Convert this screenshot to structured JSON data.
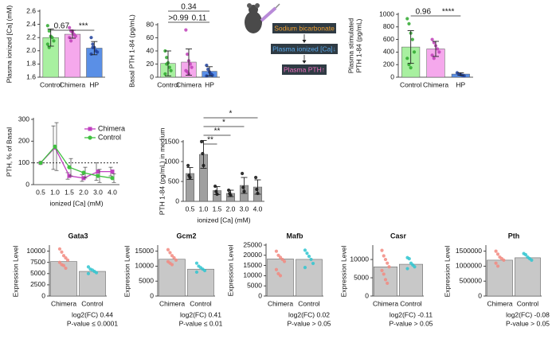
{
  "chart_data": [
    {
      "type": "bar",
      "y_label": [
        "Plasma ionized [Ca] (mM)"
      ],
      "categories": [
        "Control",
        "Chimera",
        "HP"
      ],
      "values": [
        2.2,
        2.25,
        2.04
      ],
      "errors": [
        0.13,
        0.06,
        0.1
      ],
      "points": [
        [
          2.38,
          2.3,
          2.22,
          2.2,
          2.15,
          2.1,
          2.05
        ],
        [
          2.35,
          2.3,
          2.28,
          2.25,
          2.22,
          2.2,
          2.15,
          2.3
        ],
        [
          2.2,
          2.1,
          2.05,
          2.0,
          1.98,
          1.95,
          2.05
        ]
      ],
      "colors": [
        "#a8f0a0",
        "#f5a8ec",
        "#5a8fe6"
      ],
      "point_colors": [
        "#2ea82e",
        "#c040b8",
        "#1f3f9a"
      ],
      "ylim": [
        1.6,
        2.6
      ],
      "yticks": [
        {
          "value": 1.6,
          "label": "1.6"
        },
        {
          "value": 1.8,
          "label": "1.8"
        },
        {
          "value": 2,
          "label": "2.0"
        },
        {
          "value": 2.2,
          "label": "2.2"
        },
        {
          "value": 2.4,
          "label": "2.4"
        },
        {
          "value": 2.6,
          "label": "2.6"
        }
      ],
      "annotations": [
        "0.67",
        "***"
      ]
    },
    {
      "type": "bar",
      "y_label": [
        "Basal PTH 1-84 (pg/mL)"
      ],
      "categories": [
        "Control",
        "Chimera",
        "HP"
      ],
      "values": [
        21,
        23,
        9
      ],
      "errors": [
        19,
        20,
        7
      ],
      "points": [
        [
          40,
          30,
          22,
          15,
          10,
          5,
          20
        ],
        [
          72,
          35,
          25,
          20,
          15,
          10,
          8,
          5
        ],
        [
          18,
          12,
          8,
          5,
          3,
          2
        ]
      ],
      "colors": [
        "#a8f0a0",
        "#f5a8ec",
        "#5a8fe6"
      ],
      "point_colors": [
        "#2ea82e",
        "#c040b8",
        "#1f3f9a"
      ],
      "ylim": [
        0,
        80
      ],
      "yticks": [
        0,
        20,
        40,
        60,
        80
      ],
      "annotations": [
        ">0.99",
        "0.11",
        "0.34"
      ]
    },
    {
      "type": "bar",
      "y_label": [
        "Plasma stimulated",
        "PTH 1-84 (pg/mL)"
      ],
      "categories": [
        "Control",
        "Chimera",
        "HP"
      ],
      "values": [
        480,
        450,
        50
      ],
      "errors": [
        260,
        120,
        20
      ],
      "points": [
        [
          930,
          850,
          700,
          600,
          400,
          300,
          200,
          150
        ],
        [
          600,
          550,
          500,
          450,
          400,
          350,
          300
        ],
        [
          70,
          50,
          40,
          30,
          20
        ]
      ],
      "colors": [
        "#a8f0a0",
        "#f5a8ec",
        "#5a8fe6"
      ],
      "point_colors": [
        "#2ea82e",
        "#c040b8",
        "#1f3f9a"
      ],
      "ylim": [
        0,
        1000
      ],
      "yticks": [
        0,
        200,
        400,
        600,
        800,
        1000
      ],
      "annotations": [
        "0.96",
        "****"
      ]
    },
    {
      "type": "line",
      "y_label": [
        "PTH, % of Basal"
      ],
      "x_label": "ionized [Ca] (mM)",
      "categories": [
        "0.5",
        "1.0",
        "1.5",
        "2.0",
        "3.0",
        "4.0"
      ],
      "series": [
        {
          "name": "Chimera",
          "color": "#c040c0",
          "marker": "square",
          "values": [
            100,
            170,
            40,
            30,
            60,
            60
          ],
          "errors": [
            0,
            100,
            15,
            15,
            40,
            20
          ]
        },
        {
          "name": "Control",
          "color": "#40c040",
          "marker": "circle",
          "values": [
            100,
            175,
            80,
            55,
            40,
            30
          ],
          "errors": [
            0,
            110,
            40,
            25,
            30,
            20
          ]
        }
      ],
      "ylim": [
        0,
        300
      ],
      "yticks": [
        0,
        100,
        200,
        300
      ],
      "reference_line": 100,
      "legend": "upper right"
    },
    {
      "type": "bar",
      "y_label": [
        "PTH 1-84 (pg/mL) in medium"
      ],
      "x_label": "ionized [Ca] (mM)",
      "categories": [
        "0.5",
        "1.0",
        "1.5",
        "2.0",
        "3.0",
        "4.0"
      ],
      "values": [
        700,
        1180,
        270,
        200,
        400,
        360
      ],
      "errors": [
        150,
        350,
        100,
        80,
        200,
        180
      ],
      "points": [
        [
          900,
          650,
          600
        ],
        [
          1500,
          1200,
          900
        ],
        [
          380,
          250,
          180
        ],
        [
          280,
          200,
          150
        ],
        [
          700,
          350,
          250
        ],
        [
          600,
          300,
          200
        ]
      ],
      "colors": [
        "#a0a0a0",
        "#a0a0a0",
        "#a0a0a0",
        "#a0a0a0",
        "#a0a0a0",
        "#a0a0a0"
      ],
      "point_colors": [
        "#111111",
        "#111111",
        "#111111",
        "#111111",
        "#111111",
        "#111111"
      ],
      "ylim": [
        0,
        1500
      ],
      "yticks": [
        0,
        500,
        1000,
        1500
      ],
      "annotations": [
        "*",
        "*",
        "**",
        "**"
      ]
    },
    {
      "type": "bar",
      "title": "Gata3",
      "y_label": [
        "Expression Level"
      ],
      "categories": [
        "Chimera",
        "Control"
      ],
      "values": [
        7700,
        5500
      ],
      "points": [
        [
          10500,
          9800,
          9000,
          8500,
          8000,
          7500,
          7000,
          6800,
          6200
        ],
        [
          6500,
          6000,
          5800,
          5500,
          5200,
          5000
        ]
      ],
      "colors": [
        "#c8c8c8",
        "#c8c8c8"
      ],
      "point_colors": [
        "#f28a80",
        "#30c6d0"
      ],
      "ylim": [
        0,
        11000
      ],
      "yticks": [
        0,
        2500,
        5000,
        7500,
        10000
      ],
      "notes": [
        "log2(FC) 0.44",
        "P-value ≤ 0.0001"
      ]
    },
    {
      "type": "bar",
      "title": "Gcm2",
      "y_label": [
        "Expression Level"
      ],
      "categories": [
        "Chimera",
        "Control"
      ],
      "values": [
        12300,
        9000
      ],
      "points": [
        [
          15500,
          14500,
          13500,
          12800,
          12000,
          11500,
          11000,
          10500
        ],
        [
          11000,
          10000,
          9500,
          9000,
          8500,
          8000
        ]
      ],
      "colors": [
        "#c8c8c8",
        "#c8c8c8"
      ],
      "point_colors": [
        "#f28a80",
        "#30c6d0"
      ],
      "ylim": [
        0,
        16500
      ],
      "yticks": [
        0,
        5000,
        10000,
        15000
      ],
      "notes": [
        "log2(FC) 0.41",
        "P-value ≤ 0.01"
      ]
    },
    {
      "type": "bar",
      "title": "Mafb",
      "y_label": [
        "Expression Level"
      ],
      "categories": [
        "Chimera",
        "Control"
      ],
      "values": [
        18200,
        18000
      ],
      "points": [
        [
          22000,
          20000,
          19000,
          18000,
          17000,
          13000,
          11000,
          10000
        ],
        [
          22500,
          21000,
          19500,
          18000,
          16000,
          14000
        ]
      ],
      "colors": [
        "#c8c8c8",
        "#c8c8c8"
      ],
      "point_colors": [
        "#f28a80",
        "#30c6d0"
      ],
      "ylim": [
        0,
        25000
      ],
      "yticks": [
        0,
        5000,
        10000,
        15000,
        20000,
        25000
      ],
      "notes": [
        "log2(FC) 0.02",
        "P-value > 0.05"
      ]
    },
    {
      "type": "bar",
      "title": "Casr",
      "y_label": [
        "Expression Level"
      ],
      "categories": [
        "Chimera",
        "Control"
      ],
      "values": [
        8000,
        8700
      ],
      "points": [
        [
          12500,
          11000,
          10000,
          9000,
          8000,
          7000,
          6000,
          4500,
          3500
        ],
        [
          10500,
          10200,
          9000,
          8500,
          8000,
          7500
        ]
      ],
      "colors": [
        "#c8c8c8",
        "#c8c8c8"
      ],
      "point_colors": [
        "#f28a80",
        "#30c6d0"
      ],
      "ylim": [
        0,
        13500
      ],
      "yticks": [
        0,
        5000,
        10000
      ],
      "notes": [
        "log2(FC) -0.11",
        "P-value > 0.05"
      ]
    },
    {
      "type": "bar",
      "title": "Pth",
      "y_label": [
        "Expression Level"
      ],
      "categories": [
        "Chimera",
        "Control"
      ],
      "values": [
        1200000,
        1280000
      ],
      "points": [
        [
          1500000,
          1400000,
          1300000,
          1250000,
          1200000,
          1100000,
          1000000
        ],
        [
          1420000,
          1380000,
          1300000,
          1250000,
          1200000
        ]
      ],
      "colors": [
        "#c8c8c8",
        "#c8c8c8"
      ],
      "point_colors": [
        "#f28a80",
        "#30c6d0"
      ],
      "ylim": [
        0,
        1650000
      ],
      "yticks": [
        0,
        500000,
        1000000,
        1500000
      ],
      "notes": [
        "log2(FC) -0.08",
        "P-value > 0.05"
      ]
    }
  ],
  "diagram": {
    "steps": [
      "Sodium bicarbonate",
      "Plasma ionized [Ca]↓",
      "Plasma PTH↑"
    ]
  }
}
